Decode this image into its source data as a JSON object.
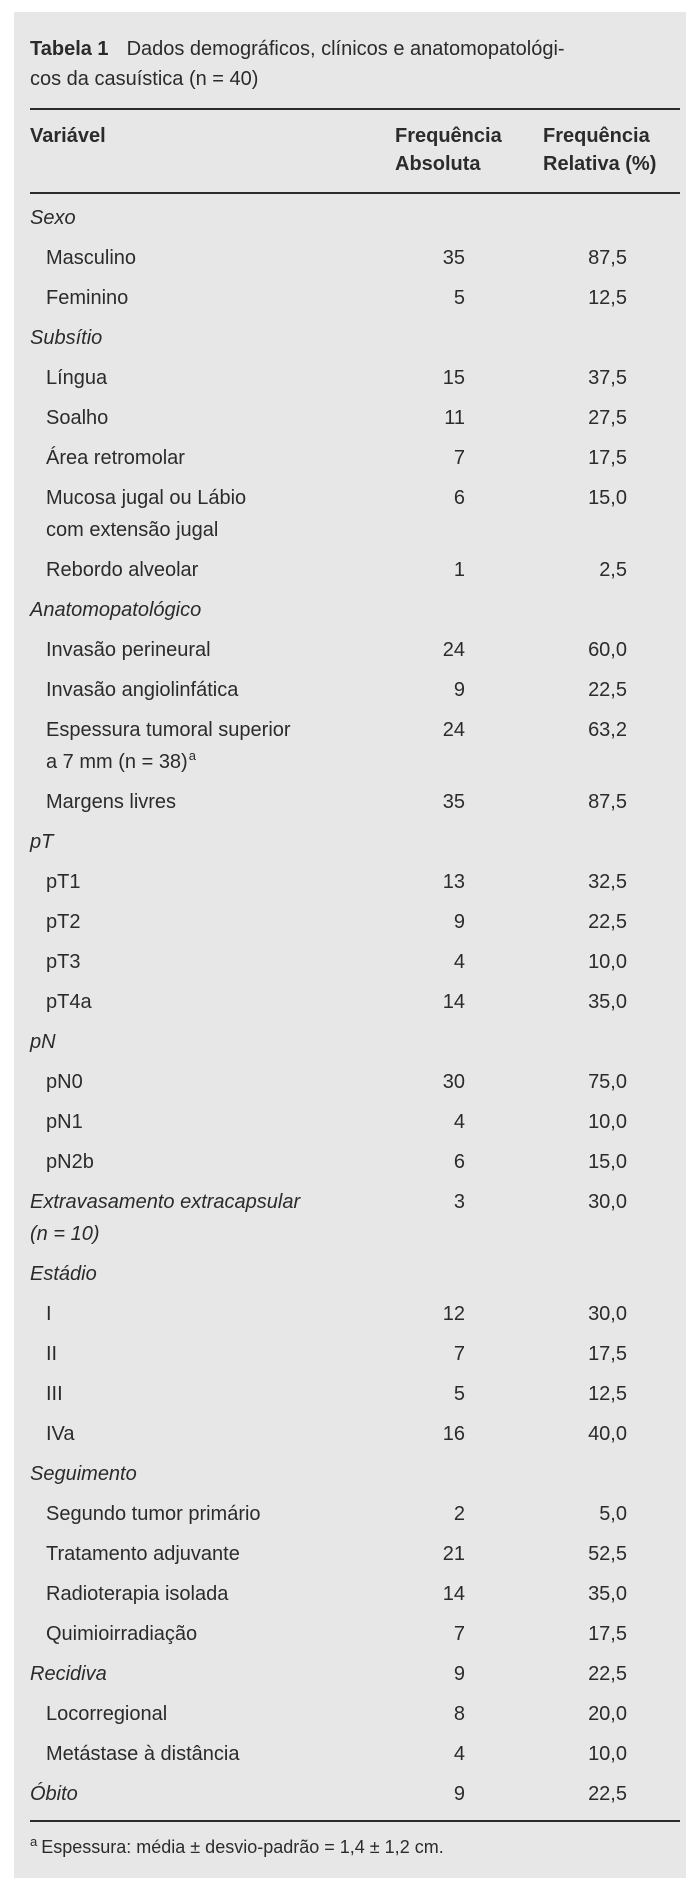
{
  "page": {
    "background": "#ffffff",
    "panel_background": "#e7e7e7",
    "text_color": "#2b2b2b",
    "rule_color": "#2b2b2b"
  },
  "table": {
    "label": "Tabela 1",
    "title": "Dados demográficos, clínicos e anatomopatológi-\ncos da casuística (n = 40)",
    "columns": [
      "Variável",
      "Frequência\nAbsoluta",
      "Frequência\nRelativa (%)"
    ],
    "rows": [
      {
        "label": "Sexo",
        "type": "section",
        "abs": "",
        "rel": ""
      },
      {
        "label": "Masculino",
        "type": "item",
        "abs": "35",
        "rel": "87,5"
      },
      {
        "label": "Feminino",
        "type": "item",
        "abs": "5",
        "rel": "12,5"
      },
      {
        "label": "Subsítio",
        "type": "section",
        "abs": "",
        "rel": ""
      },
      {
        "label": "Língua",
        "type": "item",
        "abs": "15",
        "rel": "37,5"
      },
      {
        "label": "Soalho",
        "type": "item",
        "abs": "11",
        "rel": "27,5"
      },
      {
        "label": "Área retromolar",
        "type": "item",
        "abs": "7",
        "rel": "17,5"
      },
      {
        "label": "Mucosa jugal ou Lábio\ncom extensão jugal",
        "type": "item",
        "abs": "6",
        "rel": "15,0"
      },
      {
        "label": "Rebordo alveolar",
        "type": "item",
        "abs": "1",
        "rel": "2,5"
      },
      {
        "label": "Anatomopatológico",
        "type": "section",
        "abs": "",
        "rel": ""
      },
      {
        "label": "Invasão perineural",
        "type": "item",
        "abs": "24",
        "rel": "60,0"
      },
      {
        "label": "Invasão angiolinfática",
        "type": "item",
        "abs": "9",
        "rel": "22,5"
      },
      {
        "label": "Espessura tumoral superior\na 7 mm (n = 38)",
        "sup": "a",
        "type": "item",
        "abs": "24",
        "rel": "63,2"
      },
      {
        "label": "Margens livres",
        "type": "item",
        "abs": "35",
        "rel": "87,5"
      },
      {
        "label": "pT",
        "type": "section",
        "abs": "",
        "rel": ""
      },
      {
        "label": "pT1",
        "type": "item",
        "abs": "13",
        "rel": "32,5"
      },
      {
        "label": "pT2",
        "type": "item",
        "abs": "9",
        "rel": "22,5"
      },
      {
        "label": "pT3",
        "type": "item",
        "abs": "4",
        "rel": "10,0"
      },
      {
        "label": "pT4a",
        "type": "item",
        "abs": "14",
        "rel": "35,0"
      },
      {
        "label": "pN",
        "type": "section",
        "abs": "",
        "rel": ""
      },
      {
        "label": "pN0",
        "type": "item",
        "abs": "30",
        "rel": "75,0"
      },
      {
        "label": "pN1",
        "type": "item",
        "abs": "4",
        "rel": "10,0"
      },
      {
        "label": "pN2b",
        "type": "item",
        "abs": "6",
        "rel": "15,0"
      },
      {
        "label": "Extravasamento extracapsular\n(n = 10)",
        "type": "section",
        "abs": "3",
        "rel": "30,0"
      },
      {
        "label": "Estádio",
        "type": "section",
        "abs": "",
        "rel": ""
      },
      {
        "label": "I",
        "type": "item",
        "abs": "12",
        "rel": "30,0"
      },
      {
        "label": "II",
        "type": "item",
        "abs": "7",
        "rel": "17,5"
      },
      {
        "label": "III",
        "type": "item",
        "abs": "5",
        "rel": "12,5"
      },
      {
        "label": "IVa",
        "type": "item",
        "abs": "16",
        "rel": "40,0"
      },
      {
        "label": "Seguimento",
        "type": "section",
        "abs": "",
        "rel": ""
      },
      {
        "label": "Segundo tumor primário",
        "type": "item",
        "abs": "2",
        "rel": "5,0"
      },
      {
        "label": "Tratamento adjuvante",
        "type": "item",
        "abs": "21",
        "rel": "52,5"
      },
      {
        "label": "Radioterapia isolada",
        "type": "item",
        "abs": "14",
        "rel": "35,0"
      },
      {
        "label": "Quimioirradiação",
        "type": "item",
        "abs": "7",
        "rel": "17,5"
      },
      {
        "label": "Recidiva",
        "type": "section",
        "abs": "9",
        "rel": "22,5"
      },
      {
        "label": "Locorregional",
        "type": "item",
        "abs": "8",
        "rel": "20,0"
      },
      {
        "label": "Metástase à distância",
        "type": "item",
        "abs": "4",
        "rel": "10,0"
      },
      {
        "label": "Óbito",
        "type": "section",
        "abs": "9",
        "rel": "22,5"
      }
    ],
    "footnote": {
      "marker": "a",
      "text": "Espessura: média ± desvio-padrão = 1,4 ± 1,2 cm."
    }
  }
}
